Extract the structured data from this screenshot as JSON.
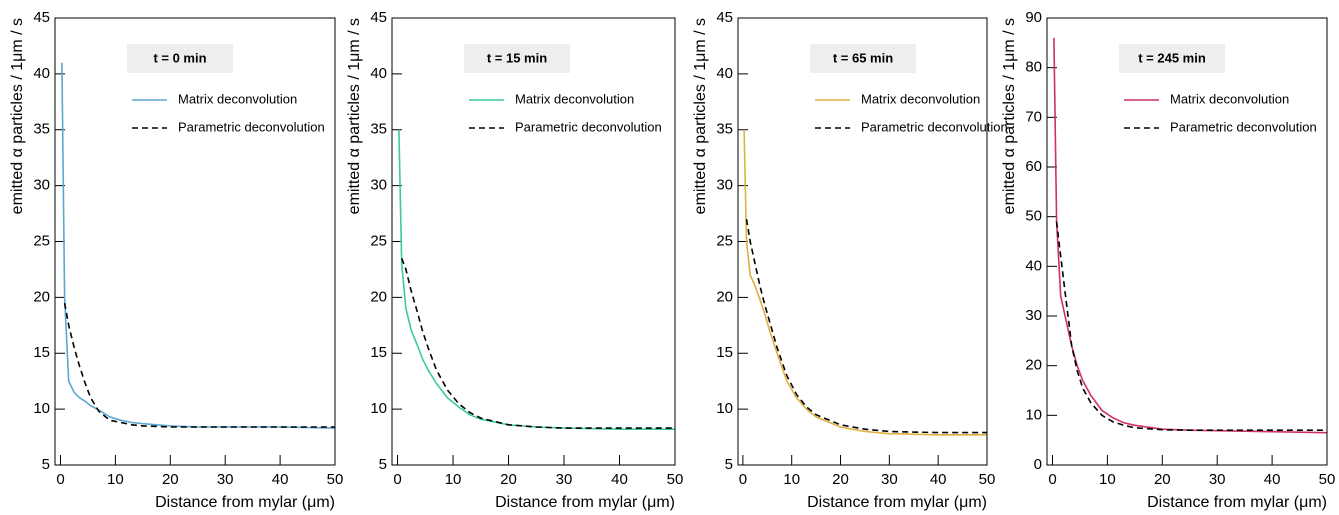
{
  "chart_data": [
    {
      "type": "line",
      "title": "t = 0 min",
      "xlabel": "Distance from mylar (μm)",
      "ylabel": "emitted α particles / 1μm / s",
      "x": [
        0.25,
        0.75,
        1.5,
        2.5,
        3.5,
        4.5,
        5.5,
        7,
        9,
        11,
        13,
        15,
        20,
        25,
        30,
        40,
        50
      ],
      "series": [
        {
          "name": "Matrix deconvolution",
          "color": "#5ba7d0",
          "linestyle": "solid",
          "values": [
            41,
            20,
            12.5,
            11.5,
            11,
            10.7,
            10.3,
            9.9,
            9.3,
            9.0,
            8.8,
            8.7,
            8.5,
            8.4,
            8.4,
            8.4,
            8.3
          ]
        },
        {
          "name": "Parametric deconvolution",
          "color": "#000000",
          "linestyle": "dashed",
          "values": [
            null,
            19.5,
            17.5,
            15.5,
            13.8,
            12.3,
            11,
            9.8,
            9.0,
            8.8,
            8.6,
            8.5,
            8.4,
            8.4,
            8.4,
            8.4,
            8.4
          ]
        }
      ],
      "xlim": [
        -1,
        50
      ],
      "xticks": [
        0,
        10,
        20,
        30,
        40,
        50
      ],
      "ylim": [
        5,
        45
      ],
      "yticks": [
        5,
        10,
        15,
        20,
        25,
        30,
        35,
        40,
        45
      ]
    },
    {
      "type": "line",
      "title": "t = 15 min",
      "xlabel": "Distance from mylar (μm)",
      "ylabel": "emitted α particles / 1μm / s",
      "x": [
        0.25,
        0.75,
        1.5,
        2.5,
        3.5,
        4.5,
        5.5,
        7,
        9,
        11,
        13,
        15,
        20,
        25,
        30,
        40,
        50
      ],
      "series": [
        {
          "name": "Matrix deconvolution",
          "color": "#3ec9a0",
          "linestyle": "solid",
          "values": [
            35,
            23,
            19,
            17,
            15.8,
            14.5,
            13.5,
            12.3,
            11,
            10.2,
            9.5,
            9.1,
            8.6,
            8.4,
            8.3,
            8.2,
            8.2
          ]
        },
        {
          "name": "Parametric deconvolution",
          "color": "#000000",
          "linestyle": "dashed",
          "values": [
            null,
            23.5,
            22.5,
            20.5,
            18.8,
            17,
            15.5,
            13.5,
            11.7,
            10.5,
            9.7,
            9.2,
            8.6,
            8.4,
            8.3,
            8.3,
            8.3
          ]
        }
      ],
      "xlim": [
        -1,
        50
      ],
      "xticks": [
        0,
        10,
        20,
        30,
        40,
        50
      ],
      "ylim": [
        5,
        45
      ],
      "yticks": [
        5,
        10,
        15,
        20,
        25,
        30,
        35,
        40,
        45
      ]
    },
    {
      "type": "line",
      "title": "t = 65 min",
      "xlabel": "Distance from mylar (μm)",
      "ylabel": "emitted α particles / 1μm / s",
      "x": [
        0.25,
        0.75,
        1.5,
        2.5,
        3.5,
        4.5,
        5.5,
        7,
        9,
        11,
        13,
        15,
        20,
        25,
        30,
        40,
        50
      ],
      "series": [
        {
          "name": "Matrix deconvolution",
          "color": "#e0b040",
          "linestyle": "solid",
          "values": [
            35,
            25,
            22,
            21,
            19.8,
            18.5,
            17,
            15,
            12.5,
            11,
            10,
            9.3,
            8.4,
            8,
            7.8,
            7.7,
            7.7
          ]
        },
        {
          "name": "Parametric deconvolution",
          "color": "#000000",
          "linestyle": "dashed",
          "values": [
            null,
            27,
            25,
            23,
            21,
            19.3,
            17.8,
            15.5,
            13,
            11.3,
            10.2,
            9.5,
            8.6,
            8.2,
            8,
            7.9,
            7.9
          ]
        }
      ],
      "xlim": [
        -1,
        50
      ],
      "xticks": [
        0,
        10,
        20,
        30,
        40,
        50
      ],
      "ylim": [
        5,
        45
      ],
      "yticks": [
        5,
        10,
        15,
        20,
        25,
        30,
        35,
        40,
        45
      ]
    },
    {
      "type": "line",
      "title": "t = 245 min",
      "xlabel": "Distance from mylar (μm)",
      "ylabel": "emitted α particles / 1μm / s",
      "x": [
        0.25,
        0.75,
        1.5,
        2.5,
        3.5,
        4.5,
        5.5,
        7,
        9,
        11,
        13,
        15,
        20,
        25,
        30,
        40,
        50
      ],
      "series": [
        {
          "name": "Matrix deconvolution",
          "color": "#d03060",
          "linestyle": "solid",
          "values": [
            86,
            49,
            34,
            29,
            24,
            20,
            17,
            14,
            11,
            9.5,
            8.5,
            8,
            7.2,
            7,
            6.9,
            6.7,
            6.5
          ]
        },
        {
          "name": "Parametric deconvolution",
          "color": "#000000",
          "linestyle": "dashed",
          "values": [
            null,
            49,
            42,
            33,
            24,
            19,
            15.5,
            12.5,
            10,
            8.7,
            8,
            7.5,
            7.1,
            7,
            7,
            7,
            7
          ]
        }
      ],
      "xlim": [
        -1,
        50
      ],
      "xticks": [
        0,
        10,
        20,
        30,
        40,
        50
      ],
      "ylim": [
        0,
        90
      ],
      "yticks": [
        0,
        10,
        20,
        30,
        40,
        50,
        60,
        70,
        80,
        90
      ]
    }
  ]
}
